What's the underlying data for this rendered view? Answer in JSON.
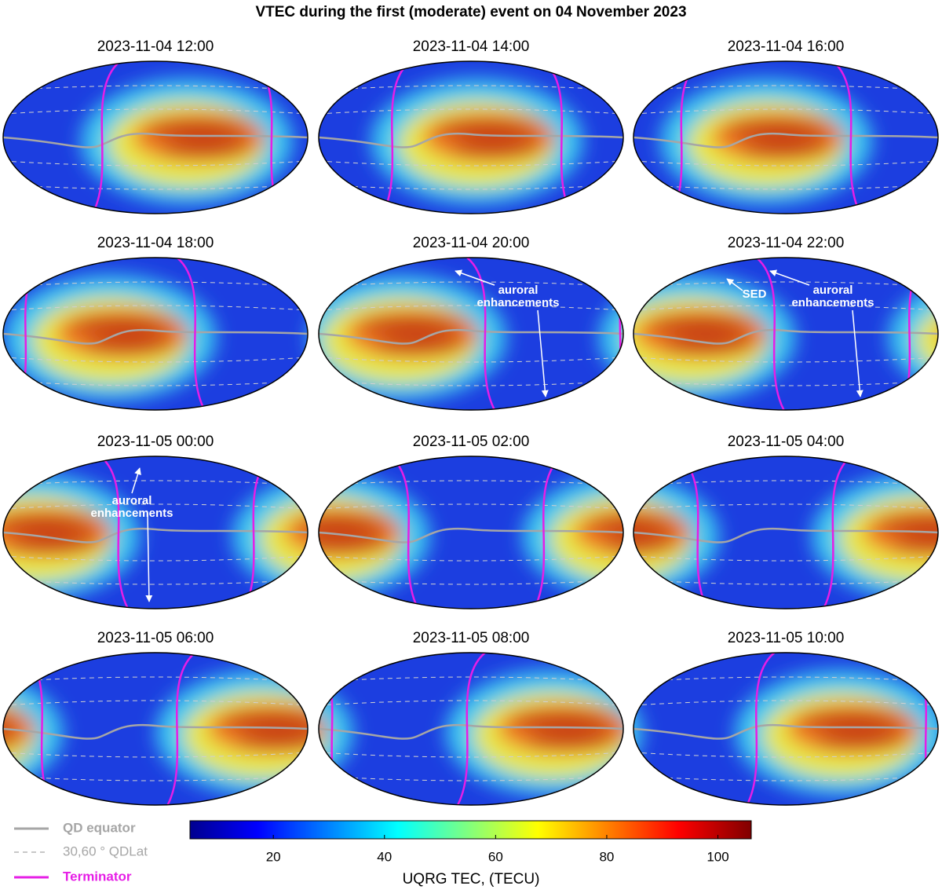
{
  "title": "VTEC during the first (moderate) event on 04 November 2023",
  "panels": [
    {
      "title": "2023-11-04 12:00"
    },
    {
      "title": "2023-11-04 14:00"
    },
    {
      "title": "2023-11-04 16:00"
    },
    {
      "title": "2023-11-04 18:00"
    },
    {
      "title": "2023-11-04 20:00",
      "annotations": [
        "auroral",
        "enhancements"
      ]
    },
    {
      "title": "2023-11-04 22:00",
      "annotations": [
        "SED",
        "auroral",
        "enhancements"
      ]
    },
    {
      "title": "2023-11-05 00:00",
      "annotations": [
        "auroral",
        "enhancements"
      ]
    },
    {
      "title": "2023-11-05 02:00"
    },
    {
      "title": "2023-11-05 04:00"
    },
    {
      "title": "2023-11-05 06:00"
    },
    {
      "title": "2023-11-05 08:00"
    },
    {
      "title": "2023-11-05 10:00"
    }
  ],
  "legend": [
    {
      "label": "QD equator",
      "color": "#a6a6a6"
    },
    {
      "label": "30,60 ° QDLat",
      "color": "#a6a6a6"
    },
    {
      "label": "Terminator",
      "color": "#e61ee6"
    }
  ],
  "colorbar": {
    "label": "UQRG TEC, (TECU)",
    "lim": [
      5,
      106
    ],
    "ticks": [
      20,
      40,
      60,
      80,
      100
    ]
  }
}
